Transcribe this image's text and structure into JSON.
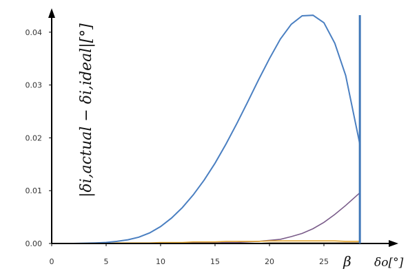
{
  "chart_data": {
    "type": "line",
    "title": "",
    "xlabel": "δo[°]",
    "ylabel": "|δi,actual − δi,ideal|[°]",
    "xlim": [
      0,
      29
    ],
    "ylim": [
      0,
      0.045
    ],
    "x_ticks": [
      0,
      5,
      10,
      15,
      20,
      25
    ],
    "x_tick_labels": [
      "0",
      "5",
      "10",
      "15",
      "20",
      "25"
    ],
    "x_marker": {
      "value": 28.3,
      "label": "β"
    },
    "y_ticks": [
      0.0,
      0.01,
      0.02,
      0.03,
      0.04
    ],
    "y_tick_labels": [
      "0.00",
      "0.01",
      "0.02",
      "0.03",
      "0.04"
    ],
    "grid": false,
    "x": [
      0,
      2,
      4,
      5,
      6,
      7,
      8,
      9,
      10,
      11,
      12,
      13,
      14,
      15,
      16,
      17,
      18,
      19,
      20,
      21,
      22,
      23,
      24,
      25,
      26,
      27,
      28.3
    ],
    "series": [
      {
        "color": "#4a7fc1",
        "values": [
          0,
          0,
          0.0001,
          0.0002,
          0.0004,
          0.0007,
          0.0012,
          0.002,
          0.0032,
          0.0048,
          0.0068,
          0.0092,
          0.012,
          0.0152,
          0.0188,
          0.0227,
          0.0268,
          0.031,
          0.035,
          0.0387,
          0.0415,
          0.0431,
          0.0432,
          0.0418,
          0.0379,
          0.0318,
          0.0188
        ]
      },
      {
        "color": "#7a5c8a",
        "values": [
          0,
          0,
          0,
          0,
          0,
          0,
          0,
          0,
          0,
          0,
          0.0001,
          0.0001,
          0.0001,
          0.0001,
          0.0002,
          0.0002,
          0.0003,
          0.0004,
          0.0006,
          0.0008,
          0.0013,
          0.0019,
          0.0028,
          0.004,
          0.0055,
          0.0072,
          0.0096
        ]
      },
      {
        "color": "#e0a32e",
        "values": [
          0,
          0,
          0,
          0,
          0.0001,
          0.0001,
          0.0001,
          0.0001,
          0.0002,
          0.0002,
          0.0002,
          0.0003,
          0.0003,
          0.0003,
          0.0004,
          0.0004,
          0.0004,
          0.0004,
          0.0005,
          0.0005,
          0.0005,
          0.0005,
          0.0005,
          0.0005,
          0.0005,
          0.0004,
          0.0004
        ]
      },
      {
        "color": "#8b6a3a",
        "values": [
          0,
          0,
          0,
          0,
          0,
          0,
          0,
          0,
          0,
          0,
          0,
          0,
          0,
          0,
          0,
          0,
          0,
          0,
          0.0001,
          0.0001,
          0.0001,
          0.0001,
          0.0001,
          0.0001,
          0.0001,
          0.0001,
          0.0001
        ]
      }
    ]
  }
}
